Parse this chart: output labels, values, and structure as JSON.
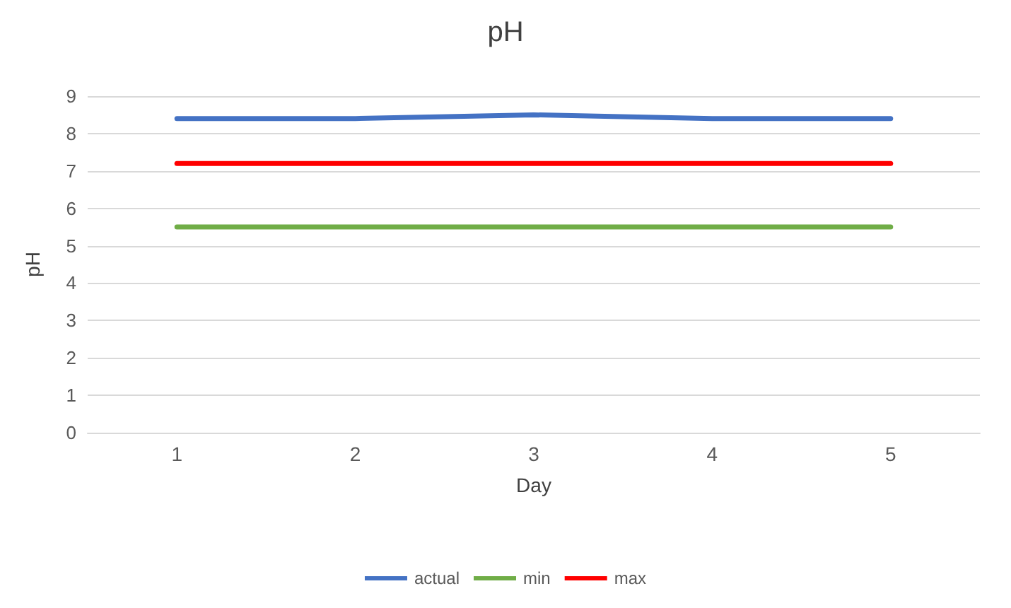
{
  "chart_data": {
    "type": "line",
    "title": "pH",
    "xlabel": "Day",
    "ylabel": "pH",
    "categories": [
      "1",
      "2",
      "3",
      "4",
      "5"
    ],
    "series": [
      {
        "name": "actual",
        "color": "#4472c4",
        "values": [
          8.4,
          8.4,
          8.5,
          8.4,
          8.4
        ]
      },
      {
        "name": "min",
        "color": "#70ad47",
        "values": [
          5.5,
          5.5,
          5.5,
          5.5,
          5.5
        ]
      },
      {
        "name": "max",
        "color": "#ff0000",
        "values": [
          7.2,
          7.2,
          7.2,
          7.2,
          7.2
        ]
      }
    ],
    "ylim": [
      0,
      9
    ],
    "yticks": [
      0,
      1,
      2,
      3,
      4,
      5,
      6,
      7,
      8,
      9
    ],
    "grid": "y",
    "legend": "bottom",
    "marker": "none",
    "line_style": "solid"
  }
}
